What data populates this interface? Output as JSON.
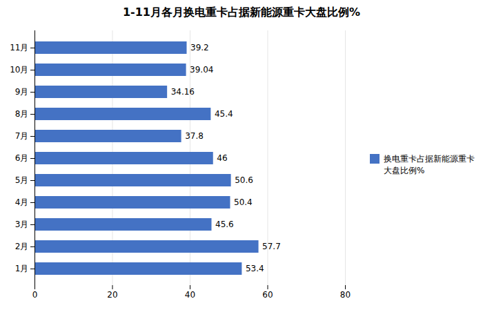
{
  "chart_data": {
    "type": "bar",
    "orientation": "horizontal",
    "title": "1-11月各月换电重卡占据新能源重卡大盘比例%",
    "categories": [
      "1月",
      "2月",
      "3月",
      "4月",
      "5月",
      "6月",
      "7月",
      "8月",
      "9月",
      "10月",
      "11月"
    ],
    "series": [
      {
        "name": "换电重卡占据新能源重卡\n大盘比例%",
        "color": "#4472C4",
        "values": [
          53.4,
          57.7,
          45.6,
          50.4,
          50.6,
          46,
          37.8,
          45.4,
          34.16,
          39.04,
          39.2
        ]
      }
    ],
    "xlim": [
      0,
      80
    ],
    "xticks": [
      0,
      20,
      40,
      60,
      80
    ],
    "grid": true,
    "legend": "right",
    "data_labels": true
  }
}
